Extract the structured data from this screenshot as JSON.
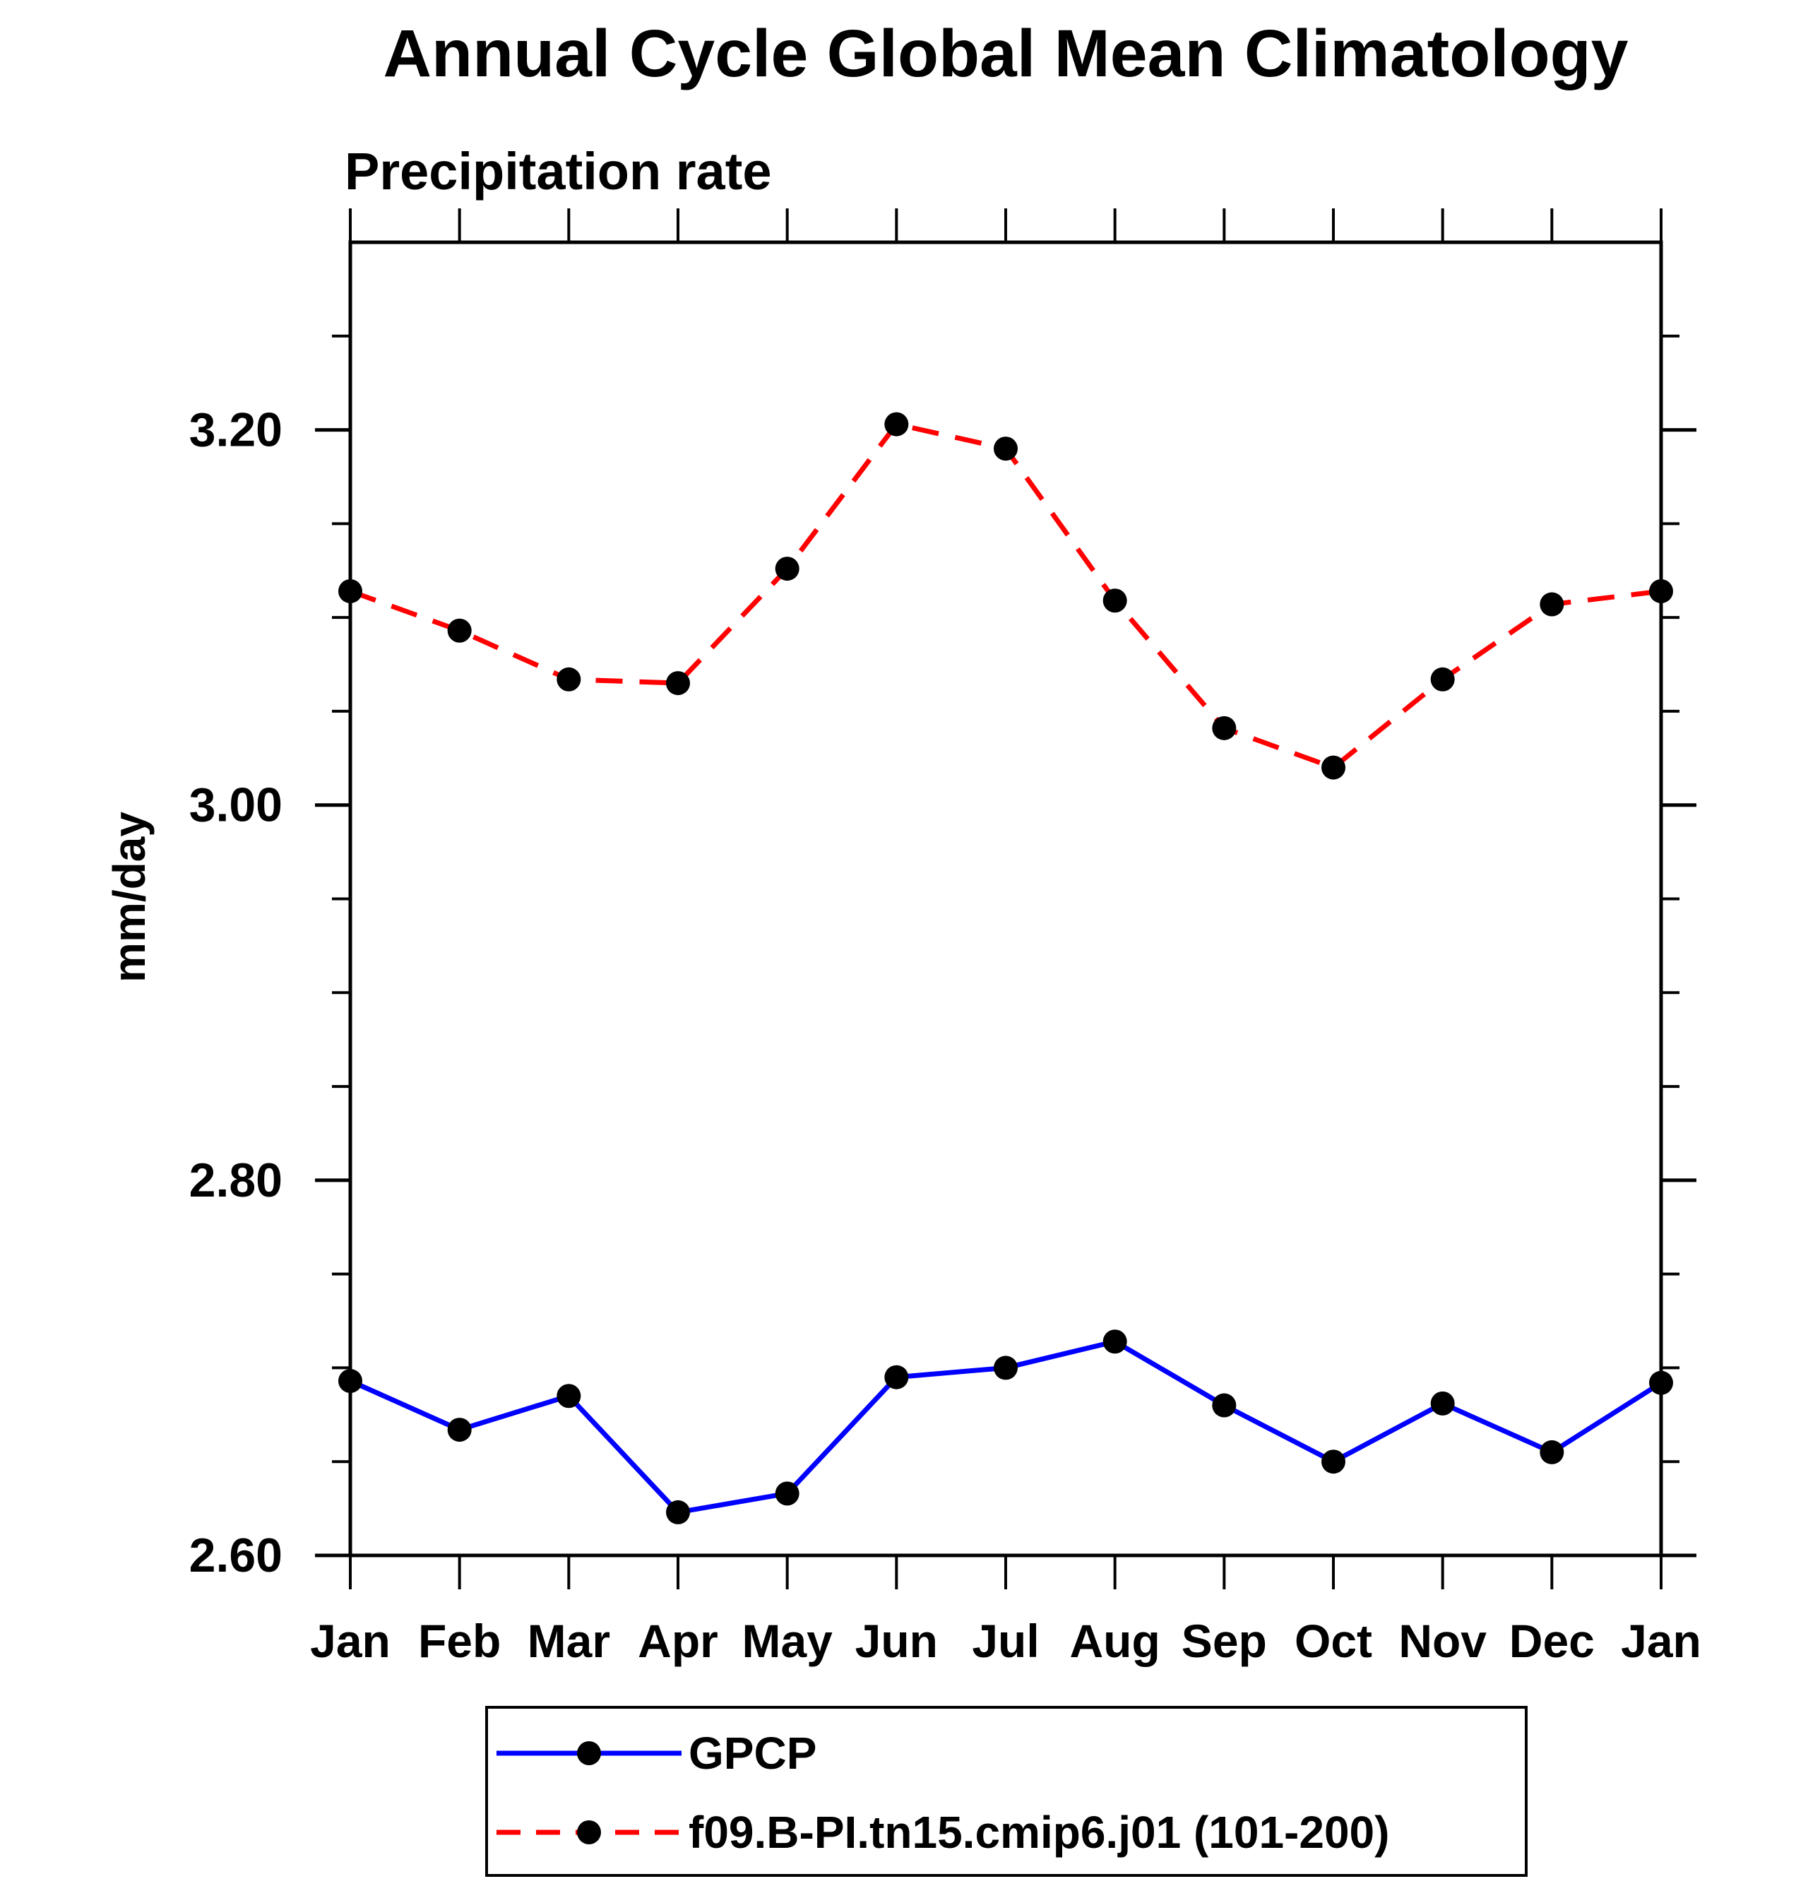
{
  "title": "Annual Cycle Global Mean Climatology",
  "subtitle": "Precipitation rate",
  "ylabel": "mm/day",
  "colors": {
    "gpcp_line": "#0000ff",
    "model_line": "#ff0000",
    "marker": "#000000",
    "axis": "#000000",
    "background": "#ffffff"
  },
  "chart_data": {
    "type": "line",
    "title": "Annual Cycle Global Mean Climatology",
    "subtitle": "Precipitation rate",
    "xlabel": "",
    "ylabel": "mm/day",
    "categories": [
      "Jan",
      "Feb",
      "Mar",
      "Apr",
      "May",
      "Jun",
      "Jul",
      "Aug",
      "Sep",
      "Oct",
      "Nov",
      "Dec",
      "Jan"
    ],
    "series": [
      {
        "name": "GPCP",
        "color": "#0000ff",
        "line_style": "solid",
        "marker": "circle",
        "marker_color": "#000000",
        "values": [
          2.693,
          2.667,
          2.685,
          2.623,
          2.633,
          2.695,
          2.7,
          2.714,
          2.68,
          2.65,
          2.681,
          2.655,
          2.692
        ]
      },
      {
        "name": "f09.B-PI.tn15.cmip6.j01 (101-200)",
        "color": "#ff0000",
        "line_style": "dashed",
        "marker": "circle",
        "marker_color": "#000000",
        "values": [
          3.114,
          3.093,
          3.067,
          3.065,
          3.126,
          3.203,
          3.19,
          3.109,
          3.041,
          3.02,
          3.067,
          3.107,
          3.114
        ]
      }
    ],
    "ylim": [
      2.6,
      3.3
    ],
    "y_major_ticks": [
      2.6,
      2.8,
      3.0,
      3.2
    ],
    "y_major_tick_labels": [
      "2.60",
      "2.80",
      "3.00",
      "3.20"
    ],
    "y_minor_step": 0.05,
    "grid": false,
    "legend_position": "bottom"
  }
}
